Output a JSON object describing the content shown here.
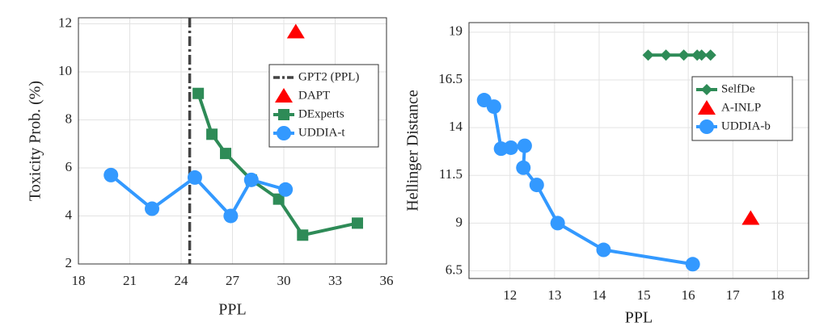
{
  "chart_data": [
    {
      "type": "line",
      "xlabel": "PPL",
      "ylabel": "Toxicity Prob. (%)",
      "xlim": [
        18,
        36
      ],
      "xticks": [
        18,
        21,
        24,
        27,
        30,
        33,
        36
      ],
      "ylim": [
        2,
        12.25
      ],
      "yticks": [
        2,
        4,
        6,
        8,
        10,
        12
      ],
      "grid": true,
      "legend": "upper right",
      "series": [
        {
          "name": "GPT2 (PPL)",
          "color": "#444444",
          "marker": "vline",
          "x": [
            24.5
          ],
          "values": [
            null
          ]
        },
        {
          "name": "DAPT",
          "color": "#ff0000",
          "marker": "triangle",
          "x": [
            30.7
          ],
          "values": [
            11.66
          ]
        },
        {
          "name": "DExperts",
          "color": "#2e8b57",
          "marker": "square",
          "x": [
            25.0,
            25.8,
            26.6,
            28.1,
            29.7,
            31.1,
            34.3
          ],
          "values": [
            9.1,
            7.4,
            6.6,
            5.5,
            4.7,
            3.2,
            3.7
          ]
        },
        {
          "name": "UDDIA-t",
          "color": "#3399ff",
          "marker": "circle",
          "x": [
            19.9,
            22.3,
            24.8,
            26.9,
            28.1,
            30.1
          ],
          "values": [
            5.7,
            4.3,
            5.6,
            4.0,
            5.5,
            5.1
          ]
        }
      ]
    },
    {
      "type": "line",
      "xlabel": "PPL",
      "ylabel": "Hellinger Distance",
      "xlim": [
        11.08,
        18.7
      ],
      "xticks": [
        12,
        13,
        14,
        15,
        16,
        17,
        18
      ],
      "ylim": [
        6.1,
        19.5
      ],
      "yticks": [
        6.5,
        9,
        11.5,
        14,
        16.5,
        19
      ],
      "grid": true,
      "legend": "upper right",
      "series": [
        {
          "name": "SelfDe",
          "color": "#2e8b57",
          "marker": "diamond",
          "x": [
            15.1,
            15.5,
            15.9,
            16.2,
            16.3,
            16.5
          ],
          "values": [
            17.8,
            17.8,
            17.8,
            17.8,
            17.8,
            17.8
          ]
        },
        {
          "name": "A-INLP",
          "color": "#ff0000",
          "marker": "triangle",
          "x": [
            17.4
          ],
          "values": [
            9.25
          ]
        },
        {
          "name": "UDDIA-b",
          "color": "#3399ff",
          "marker": "circle",
          "x": [
            11.42,
            11.64,
            11.8,
            12.02,
            12.33,
            12.3,
            12.6,
            13.07,
            14.1,
            16.1
          ],
          "values": [
            15.44,
            15.1,
            12.9,
            12.95,
            13.05,
            11.9,
            11.0,
            9.0,
            7.6,
            6.85
          ]
        }
      ]
    }
  ]
}
